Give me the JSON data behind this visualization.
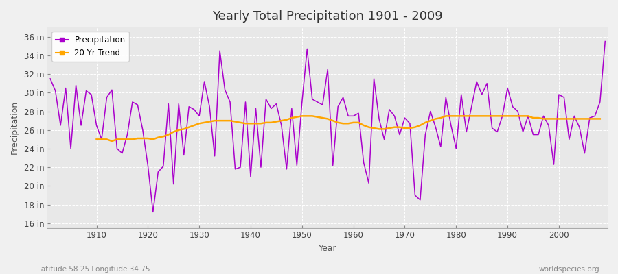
{
  "title": "Yearly Total Precipitation 1901 - 2009",
  "xlabel": "Year",
  "ylabel": "Precipitation",
  "subtitle_left": "Latitude 58.25 Longitude 34.75",
  "subtitle_right": "worldspecies.org",
  "precip_color": "#aa00cc",
  "trend_color": "#FFA500",
  "plot_bg_color": "#e8e8e8",
  "fig_bg_color": "#f0f0f0",
  "ylim": [
    15.5,
    37.0
  ],
  "yticks": [
    16,
    18,
    20,
    22,
    24,
    26,
    28,
    30,
    32,
    34,
    36
  ],
  "xticks": [
    1910,
    1920,
    1930,
    1940,
    1950,
    1960,
    1970,
    1980,
    1990,
    2000
  ],
  "years": [
    1901,
    1902,
    1903,
    1904,
    1905,
    1906,
    1907,
    1908,
    1909,
    1910,
    1911,
    1912,
    1913,
    1914,
    1915,
    1916,
    1917,
    1918,
    1919,
    1920,
    1921,
    1922,
    1923,
    1924,
    1925,
    1926,
    1927,
    1928,
    1929,
    1930,
    1931,
    1932,
    1933,
    1934,
    1935,
    1936,
    1937,
    1938,
    1939,
    1940,
    1941,
    1942,
    1943,
    1944,
    1945,
    1946,
    1947,
    1948,
    1949,
    1950,
    1951,
    1952,
    1953,
    1954,
    1955,
    1956,
    1957,
    1958,
    1959,
    1960,
    1961,
    1962,
    1963,
    1964,
    1965,
    1966,
    1967,
    1968,
    1969,
    1970,
    1971,
    1972,
    1973,
    1974,
    1975,
    1976,
    1977,
    1978,
    1979,
    1980,
    1981,
    1982,
    1983,
    1984,
    1985,
    1986,
    1987,
    1988,
    1989,
    1990,
    1991,
    1992,
    1993,
    1994,
    1995,
    1996,
    1997,
    1998,
    1999,
    2000,
    2001,
    2002,
    2003,
    2004,
    2005,
    2006,
    2007,
    2008,
    2009
  ],
  "precip": [
    31.5,
    30.2,
    26.5,
    30.5,
    24.0,
    30.8,
    26.5,
    30.2,
    29.8,
    26.5,
    25.0,
    29.5,
    30.3,
    24.0,
    23.5,
    25.5,
    29.0,
    28.7,
    26.0,
    22.2,
    17.2,
    21.5,
    22.1,
    28.8,
    20.2,
    28.8,
    23.3,
    28.5,
    28.2,
    27.5,
    31.2,
    28.5,
    23.2,
    34.5,
    30.3,
    29.0,
    21.8,
    22.0,
    29.0,
    21.0,
    28.3,
    22.0,
    29.3,
    28.3,
    28.8,
    26.5,
    21.8,
    28.3,
    22.2,
    29.0,
    34.7,
    29.3,
    29.0,
    28.7,
    32.5,
    22.2,
    28.5,
    29.5,
    27.5,
    27.5,
    27.8,
    22.5,
    20.3,
    31.5,
    27.2,
    25.0,
    28.2,
    27.5,
    25.5,
    27.3,
    26.7,
    19.0,
    18.5,
    25.5,
    28.0,
    26.3,
    24.2,
    29.5,
    26.5,
    24.0,
    29.8,
    25.8,
    28.5,
    31.2,
    29.8,
    31.0,
    26.2,
    25.8,
    27.5,
    30.5,
    28.5,
    28.0,
    25.8,
    27.5,
    25.5,
    25.5,
    27.5,
    26.5,
    22.3,
    29.8,
    29.5,
    25.0,
    27.5,
    26.3,
    23.5,
    27.3,
    27.5,
    29.0,
    35.5
  ],
  "trend": [
    null,
    null,
    null,
    null,
    null,
    null,
    null,
    null,
    null,
    25.0,
    25.0,
    25.0,
    24.8,
    25.0,
    25.0,
    25.0,
    25.0,
    25.1,
    25.1,
    25.1,
    25.0,
    25.2,
    25.3,
    25.5,
    25.8,
    26.0,
    26.1,
    26.3,
    26.5,
    26.7,
    26.8,
    26.9,
    27.0,
    27.0,
    27.0,
    27.0,
    26.9,
    26.8,
    26.7,
    26.7,
    26.7,
    26.7,
    26.8,
    26.8,
    26.9,
    27.0,
    27.1,
    27.3,
    27.4,
    27.5,
    27.5,
    27.5,
    27.4,
    27.3,
    27.2,
    27.0,
    26.8,
    26.7,
    26.7,
    26.8,
    26.8,
    26.5,
    26.3,
    26.2,
    26.1,
    26.1,
    26.2,
    26.3,
    26.3,
    26.2,
    26.2,
    26.3,
    26.5,
    26.8,
    27.0,
    27.2,
    27.3,
    27.5,
    27.5,
    27.5,
    27.5,
    27.5,
    27.5,
    27.5,
    27.5,
    27.5,
    27.5,
    27.5,
    27.5,
    27.5,
    27.5,
    27.5,
    27.5,
    27.5,
    27.3,
    27.3,
    27.2,
    27.2,
    27.2,
    27.2,
    27.2,
    27.2,
    27.2,
    27.2,
    27.2,
    27.2,
    27.2,
    27.2
  ]
}
